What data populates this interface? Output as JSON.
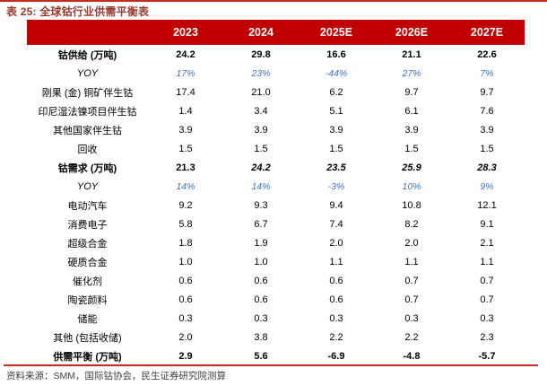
{
  "page": {
    "title": "表 25: 全球钴行业供需平衡表",
    "source_note": "资料来源：SMM，国际钴协会，民生证券研究院测算"
  },
  "colors": {
    "header_bg": "#C00000",
    "rule_line": "#C8281E",
    "title_text": "#963A30",
    "yoy_blue": "#4472C4",
    "body_text": "#000000",
    "footer_text": "#3F3F3F"
  },
  "table": {
    "type": "table",
    "title": "全球钴行业供需平衡表",
    "unit": "万吨",
    "columns": [
      "",
      "2023",
      "2024",
      "2025E",
      "2026E",
      "2027E"
    ],
    "rows": [
      {
        "label": "钴供给 (万吨)",
        "values": [
          "24.2",
          "29.8",
          "16.6",
          "21.1",
          "22.6"
        ],
        "emphasis": "bold"
      },
      {
        "label": "YOY",
        "values": [
          "17%",
          "23%",
          "-44%",
          "27%",
          "7%"
        ],
        "emphasis": "yoy"
      },
      {
        "label": "刚果 (金) 铜矿伴生钴",
        "values": [
          "17.4",
          "21.0",
          "6.2",
          "9.7",
          "9.7"
        ],
        "emphasis": "normal"
      },
      {
        "label": "印尼湿法镍项目伴生钴",
        "values": [
          "1.4",
          "3.4",
          "5.1",
          "6.1",
          "7.6"
        ],
        "emphasis": "normal"
      },
      {
        "label": "其他国家伴生钴",
        "values": [
          "3.9",
          "3.9",
          "3.9",
          "3.9",
          "3.9"
        ],
        "emphasis": "normal"
      },
      {
        "label": "回收",
        "values": [
          "1.5",
          "1.5",
          "1.5",
          "1.5",
          "1.5"
        ],
        "emphasis": "normal"
      },
      {
        "label": "钴需求 (万吨)",
        "values": [
          "21.3",
          "24.2",
          "23.5",
          "25.9",
          "28.3"
        ],
        "emphasis": "bold",
        "italic_values_from": 1
      },
      {
        "label": "YOY",
        "values": [
          "14%",
          "14%",
          "-3%",
          "10%",
          "9%"
        ],
        "emphasis": "yoy"
      },
      {
        "label": "电动汽车",
        "values": [
          "9.2",
          "9.3",
          "9.4",
          "10.8",
          "12.1"
        ],
        "emphasis": "normal"
      },
      {
        "label": "消费电子",
        "values": [
          "5.8",
          "6.7",
          "7.4",
          "8.2",
          "9.1"
        ],
        "emphasis": "normal"
      },
      {
        "label": "超级合金",
        "values": [
          "1.8",
          "1.9",
          "2.0",
          "2.0",
          "2.1"
        ],
        "emphasis": "normal"
      },
      {
        "label": "硬质合金",
        "values": [
          "1.0",
          "1.0",
          "1.1",
          "1.1",
          "1.1"
        ],
        "emphasis": "normal"
      },
      {
        "label": "催化剂",
        "values": [
          "0.6",
          "0.6",
          "0.6",
          "0.7",
          "0.7"
        ],
        "emphasis": "normal"
      },
      {
        "label": "陶瓷颜料",
        "values": [
          "0.6",
          "0.6",
          "0.6",
          "0.7",
          "0.7"
        ],
        "emphasis": "normal"
      },
      {
        "label": "储能",
        "values": [
          "0.3",
          "0.3",
          "0.3",
          "0.3",
          "0.3"
        ],
        "emphasis": "normal"
      },
      {
        "label": "其他 (包括收储)",
        "values": [
          "2.0",
          "3.8",
          "2.2",
          "2.2",
          "2.3"
        ],
        "emphasis": "normal"
      },
      {
        "label": "供需平衡 (万吨)",
        "values": [
          "2.9",
          "5.6",
          "-6.9",
          "-4.8",
          "-5.7"
        ],
        "emphasis": "bold"
      }
    ]
  }
}
